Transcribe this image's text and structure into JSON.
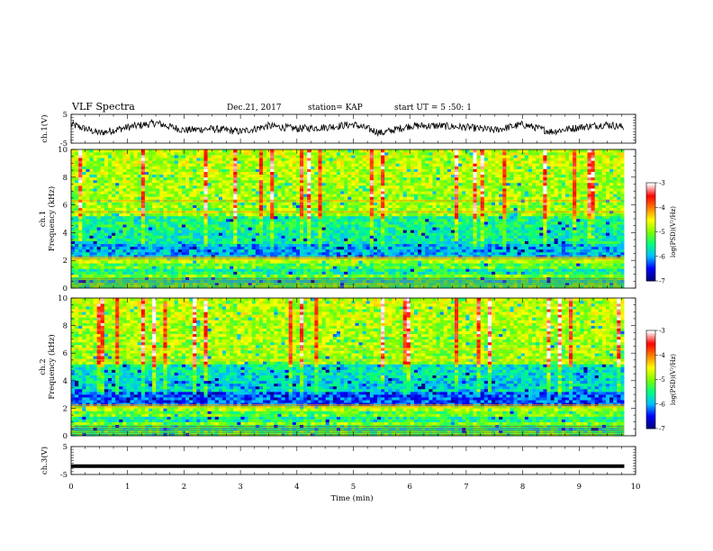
{
  "header": {
    "title": "VLF Spectra",
    "date": "Dec.21, 2017",
    "station": "station= KAP",
    "start": "start UT = 5 :50: 1"
  },
  "chart_data": [
    {
      "type": "line",
      "panel": "ch1-waveform",
      "ylabel": "ch.1(V)",
      "ylim": [
        -5,
        5
      ],
      "yticks": [
        "5",
        "-5"
      ],
      "x_range_min": [
        0,
        9.8
      ],
      "description_series": "noisy waveform fluctuating roughly between -3 and 3 V",
      "series": [
        {
          "x": [
            0,
            0.5,
            1,
            1.5,
            2,
            2.5,
            3,
            3.5,
            4,
            4.5,
            5,
            5.5,
            6,
            6.5,
            7,
            7.5,
            8,
            8.5,
            9,
            9.5,
            9.8
          ],
          "values": [
            1.5,
            -1.5,
            0.5,
            2,
            -0.5,
            0,
            -1,
            1,
            0,
            0.5,
            1.5,
            -1.5,
            1,
            1,
            0.5,
            -0.5,
            1.5,
            -1,
            0.5,
            1.5,
            0.5
          ]
        }
      ]
    },
    {
      "type": "heatmap",
      "panel": "ch1-spectrogram",
      "ylabel": "ch.1\nFrequency (kHz)",
      "ylim": [
        0,
        10
      ],
      "yticks": [
        "0",
        "2",
        "4",
        "6",
        "8",
        "10"
      ],
      "colorbar": {
        "label": "log(PSD)(V²/Hz)",
        "range": [
          -7,
          -3
        ],
        "ticks": [
          "-3",
          "-4",
          "-5",
          "-6",
          "-7"
        ],
        "colors": [
          "#00007f",
          "#0000ff",
          "#00bfff",
          "#00ff7f",
          "#7fff00",
          "#ffff00",
          "#ff7f00",
          "#ff0000",
          "#ffffff"
        ]
      }
    },
    {
      "type": "heatmap",
      "panel": "ch2-spectrogram",
      "ylabel": "ch.2\nFrequency (kHz)",
      "ylim": [
        0,
        10
      ],
      "yticks": [
        "0",
        "2",
        "4",
        "6",
        "8",
        "10"
      ],
      "colorbar": {
        "label": "log(PSD)(V²/Hz)",
        "range": [
          -7,
          -3
        ],
        "ticks": [
          "-3",
          "-4",
          "-5",
          "-6",
          "-7"
        ],
        "colors": [
          "#00007f",
          "#0000ff",
          "#00bfff",
          "#00ff7f",
          "#7fff00",
          "#ffff00",
          "#ff7f00",
          "#ff0000",
          "#ffffff"
        ]
      }
    },
    {
      "type": "line",
      "panel": "ch3-waveform",
      "ylabel": "ch.3(V)",
      "ylim": [
        -5,
        5
      ],
      "yticks": [
        "5",
        "-5"
      ],
      "series": [
        {
          "x": [
            0,
            9.8
          ],
          "values": [
            -2,
            -2
          ]
        }
      ]
    }
  ],
  "xaxis": {
    "label": "Time (min)",
    "xlim": [
      0,
      10
    ],
    "ticks": [
      "0",
      "1",
      "2",
      "3",
      "4",
      "5",
      "6",
      "7",
      "8",
      "9",
      "10"
    ]
  }
}
